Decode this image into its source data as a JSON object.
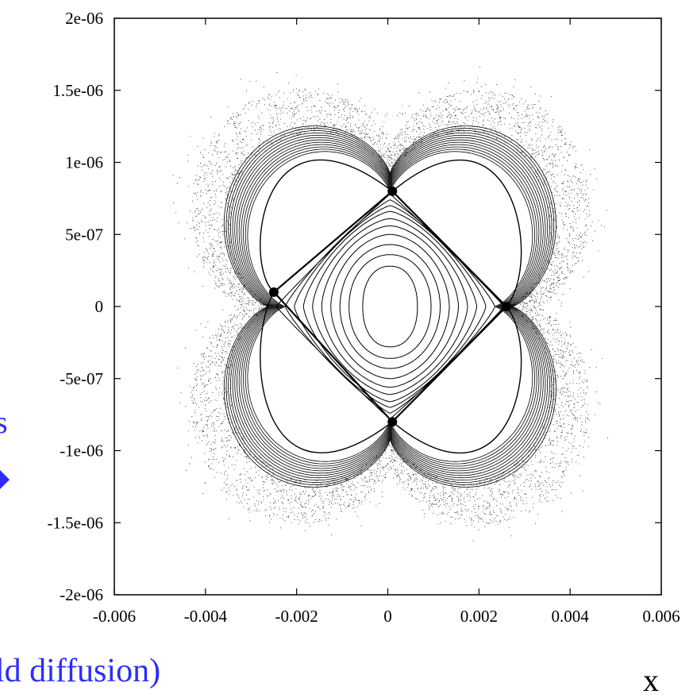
{
  "chart_data": {
    "type": "scatter",
    "title": "",
    "xlabel": "x",
    "ylabel": "",
    "xlim": [
      -0.006,
      0.006
    ],
    "ylim": [
      -2e-06,
      2e-06
    ],
    "x_ticks": [
      "-0.006",
      "-0.004",
      "-0.002",
      "0",
      "0.002",
      "0.004",
      "0.006"
    ],
    "y_ticks": [
      "2e-06",
      "1.5e-06",
      "1e-06",
      "5e-07",
      "0",
      "-5e-07",
      "-1e-06",
      "-1.5e-06",
      "-2e-06"
    ],
    "grid": false,
    "legend": "none",
    "description_hidden": "Phase-space section: nested closed curves around the origin inside a diamond separatrix, four lobes, chaotic outer layer",
    "series": [
      {
        "kind": "central_invariant_curves",
        "x_half_widths": [
          0.0006,
          0.0009,
          0.0011,
          0.0013,
          0.0015,
          0.0017,
          0.0019,
          0.0021,
          0.0023,
          0.0025
        ],
        "y_half_heights": [
          2.8e-07,
          3.6e-07,
          4.3e-07,
          5e-07,
          5.6e-07,
          6.1e-07,
          6.6e-07,
          7e-07,
          7.4e-07,
          7.8e-07
        ]
      },
      {
        "kind": "separatrix_x_points",
        "points": [
          [
            0.0001,
            8e-07
          ],
          [
            0.0026,
            0
          ],
          [
            0.0001,
            -8e-07
          ],
          [
            -0.0025,
            1e-07
          ]
        ]
      },
      {
        "kind": "chaotic_layer_extent",
        "x_range": [
          -0.0045,
          0.0048
        ],
        "y_range": [
          -1.6e-06,
          1.6e-06
        ]
      }
    ]
  },
  "overlay": {
    "caption_fragment": "ld diffusion)",
    "left_fragment": "s"
  },
  "colors": {
    "axis": "#000000",
    "marks": "#000000",
    "overlay_text": "#2c2cff"
  }
}
